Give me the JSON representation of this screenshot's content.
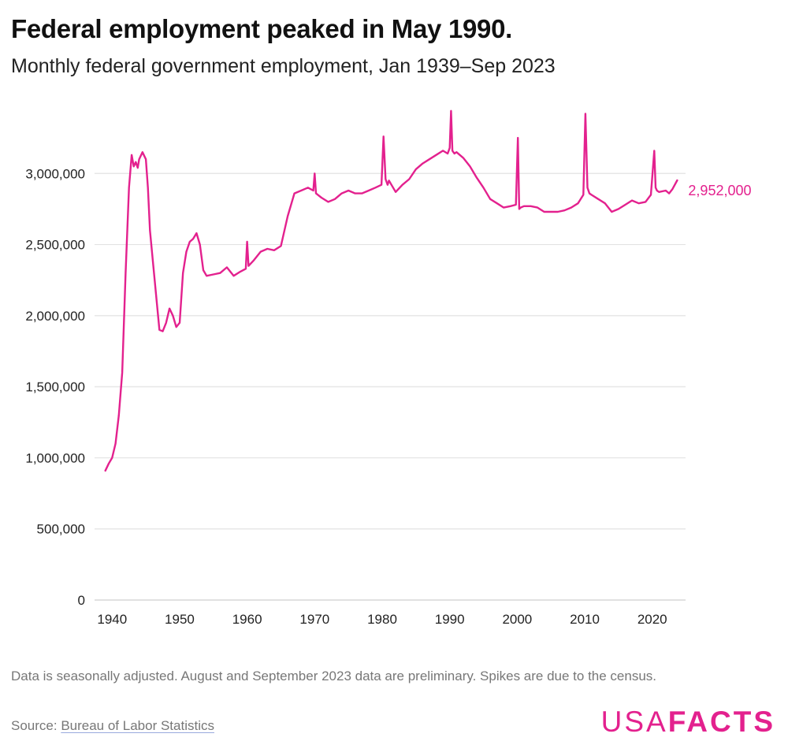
{
  "header": {
    "title": "Federal employment peaked in May 1990.",
    "subtitle": "Monthly federal government employment, Jan 1939–Sep 2023"
  },
  "footer": {
    "note": "Data is seasonally adjusted. August and September 2023 data are preliminary. Spikes are due to the census.",
    "source_prefix": "Source: ",
    "source_link": "Bureau of Labor Statistics"
  },
  "logo": {
    "usa": "USA",
    "facts": "FACTS"
  },
  "colors": {
    "line": "#e3218e",
    "grid": "#e2e2e2",
    "logo": "#e3218e"
  },
  "chart_data": {
    "type": "line",
    "title": "Federal employment peaked in May 1990.",
    "subtitle": "Monthly federal government employment, Jan 1939–Sep 2023",
    "xlabel": "",
    "ylabel": "",
    "xlim": [
      1938.8,
      2024
    ],
    "ylim": [
      0,
      3500000
    ],
    "grid": "horizontal",
    "x_ticks": [
      1940,
      1950,
      1960,
      1970,
      1980,
      1990,
      2000,
      2010,
      2020
    ],
    "x_tick_labels": [
      "1940",
      "1950",
      "1960",
      "1970",
      "1980",
      "1990",
      "2000",
      "2010",
      "2020"
    ],
    "y_ticks": [
      0,
      500000,
      1000000,
      1500000,
      2000000,
      2500000,
      3000000
    ],
    "y_tick_labels": [
      "0",
      "500,000",
      "1,000,000",
      "1,500,000",
      "2,000,000",
      "2,500,000",
      "3,000,000"
    ],
    "end_label": "2,952,000",
    "series": [
      {
        "name": "Federal government employment",
        "x": [
          1939.0,
          1939.5,
          1940.0,
          1940.5,
          1941.0,
          1941.5,
          1942.0,
          1942.5,
          1942.9,
          1943.2,
          1943.5,
          1943.8,
          1944.0,
          1944.5,
          1945.0,
          1945.3,
          1945.6,
          1946.0,
          1946.5,
          1947.0,
          1947.5,
          1948.0,
          1948.5,
          1949.0,
          1949.5,
          1950.0,
          1950.5,
          1951.0,
          1951.5,
          1952.0,
          1952.5,
          1953.0,
          1953.5,
          1954.0,
          1955.0,
          1956.0,
          1957.0,
          1958.0,
          1959.0,
          1959.8,
          1960.0,
          1960.2,
          1961.0,
          1962.0,
          1963.0,
          1964.0,
          1965.0,
          1966.0,
          1967.0,
          1968.0,
          1969.0,
          1969.8,
          1970.0,
          1970.2,
          1971.0,
          1972.0,
          1973.0,
          1974.0,
          1975.0,
          1976.0,
          1977.0,
          1978.0,
          1979.0,
          1979.9,
          1980.2,
          1980.5,
          1980.8,
          1981.0,
          1982.0,
          1983.0,
          1984.0,
          1985.0,
          1986.0,
          1987.0,
          1988.0,
          1989.0,
          1989.7,
          1990.0,
          1990.2,
          1990.4,
          1990.7,
          1991.0,
          1992.0,
          1993.0,
          1994.0,
          1995.0,
          1996.0,
          1997.0,
          1998.0,
          1999.0,
          1999.8,
          2000.1,
          2000.3,
          2000.5,
          2001.0,
          2002.0,
          2003.0,
          2004.0,
          2005.0,
          2006.0,
          2007.0,
          2008.0,
          2009.0,
          2009.8,
          2010.1,
          2010.4,
          2010.7,
          2011.0,
          2012.0,
          2013.0,
          2014.0,
          2015.0,
          2016.0,
          2017.0,
          2018.0,
          2019.0,
          2019.8,
          2020.3,
          2020.5,
          2020.7,
          2021.0,
          2022.0,
          2022.5,
          2023.0,
          2023.7
        ],
        "y": [
          910000,
          960000,
          1000000,
          1100000,
          1300000,
          1600000,
          2300000,
          2900000,
          3130000,
          3050000,
          3080000,
          3040000,
          3100000,
          3150000,
          3100000,
          2900000,
          2600000,
          2400000,
          2150000,
          1900000,
          1890000,
          1950000,
          2050000,
          2000000,
          1920000,
          1950000,
          2300000,
          2450000,
          2520000,
          2540000,
          2580000,
          2500000,
          2320000,
          2280000,
          2290000,
          2300000,
          2340000,
          2280000,
          2310000,
          2330000,
          2520000,
          2350000,
          2390000,
          2450000,
          2470000,
          2460000,
          2490000,
          2700000,
          2860000,
          2880000,
          2900000,
          2880000,
          3000000,
          2860000,
          2830000,
          2800000,
          2820000,
          2860000,
          2880000,
          2860000,
          2860000,
          2880000,
          2900000,
          2920000,
          3260000,
          2960000,
          2920000,
          2950000,
          2870000,
          2920000,
          2960000,
          3030000,
          3070000,
          3100000,
          3130000,
          3160000,
          3140000,
          3180000,
          3440000,
          3160000,
          3140000,
          3150000,
          3110000,
          3050000,
          2970000,
          2900000,
          2820000,
          2790000,
          2760000,
          2770000,
          2780000,
          3250000,
          2750000,
          2760000,
          2770000,
          2770000,
          2760000,
          2730000,
          2730000,
          2730000,
          2740000,
          2760000,
          2790000,
          2850000,
          3420000,
          2900000,
          2860000,
          2850000,
          2820000,
          2790000,
          2730000,
          2750000,
          2780000,
          2810000,
          2790000,
          2800000,
          2850000,
          3160000,
          2900000,
          2880000,
          2870000,
          2880000,
          2860000,
          2890000,
          2952000
        ]
      }
    ]
  }
}
